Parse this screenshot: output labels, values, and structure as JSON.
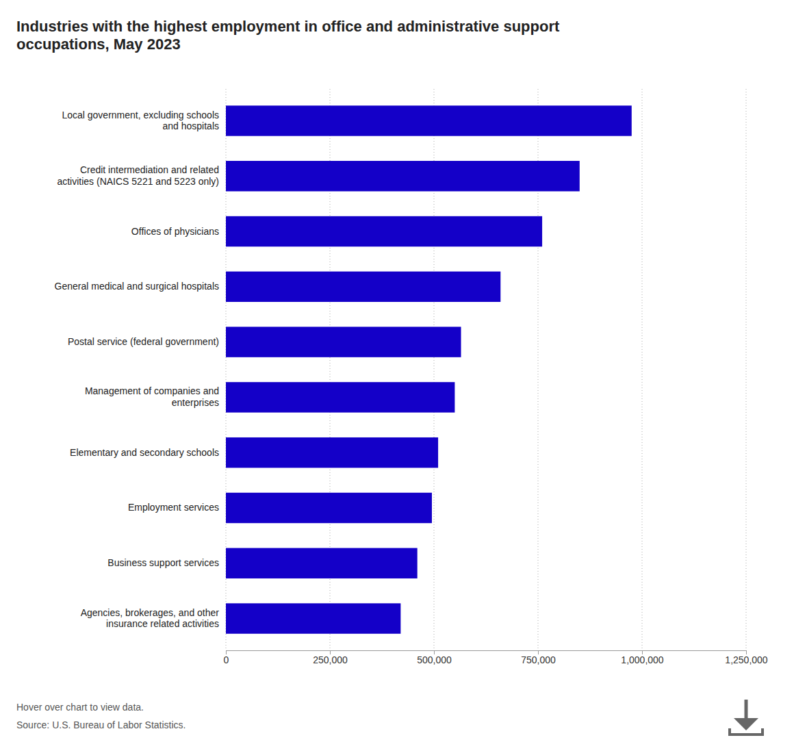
{
  "chart_data": {
    "type": "bar",
    "orientation": "horizontal",
    "title": "Industries with the highest employment in office and administrative support\noccupations, May 2023",
    "categories": [
      "Agencies, brokerages, and other\ninsurance related activities",
      "Business support services",
      "Employment services",
      "Elementary and secondary schools",
      "Management of companies and\nenterprises",
      "Postal service (federal government)",
      "General medical and surgical hospitals",
      "Offices of physicians",
      "Credit intermediation and related\nactivities (NAICS 5221 and 5223 only)",
      "Local government, excluding schools\nand hospitals"
    ],
    "values": [
      420000,
      460000,
      495000,
      510000,
      550000,
      565000,
      660000,
      760000,
      850000,
      975000
    ],
    "color": "#1400c8",
    "xlim": [
      0,
      1250000
    ],
    "xticks": [
      0,
      {
        "value": 250000,
        "label": "250,000"
      },
      {
        "value": 500000,
        "label": "500,000"
      },
      {
        "value": 750000,
        "label": "750,000"
      },
      {
        "value": 1000000,
        "label": "1,000,000"
      },
      {
        "value": 1250000,
        "label": "1,250,000"
      }
    ],
    "grid": true,
    "annotations": [
      "Hover over chart to view data.",
      "Source: U.S. Bureau of Labor Statistics."
    ]
  }
}
